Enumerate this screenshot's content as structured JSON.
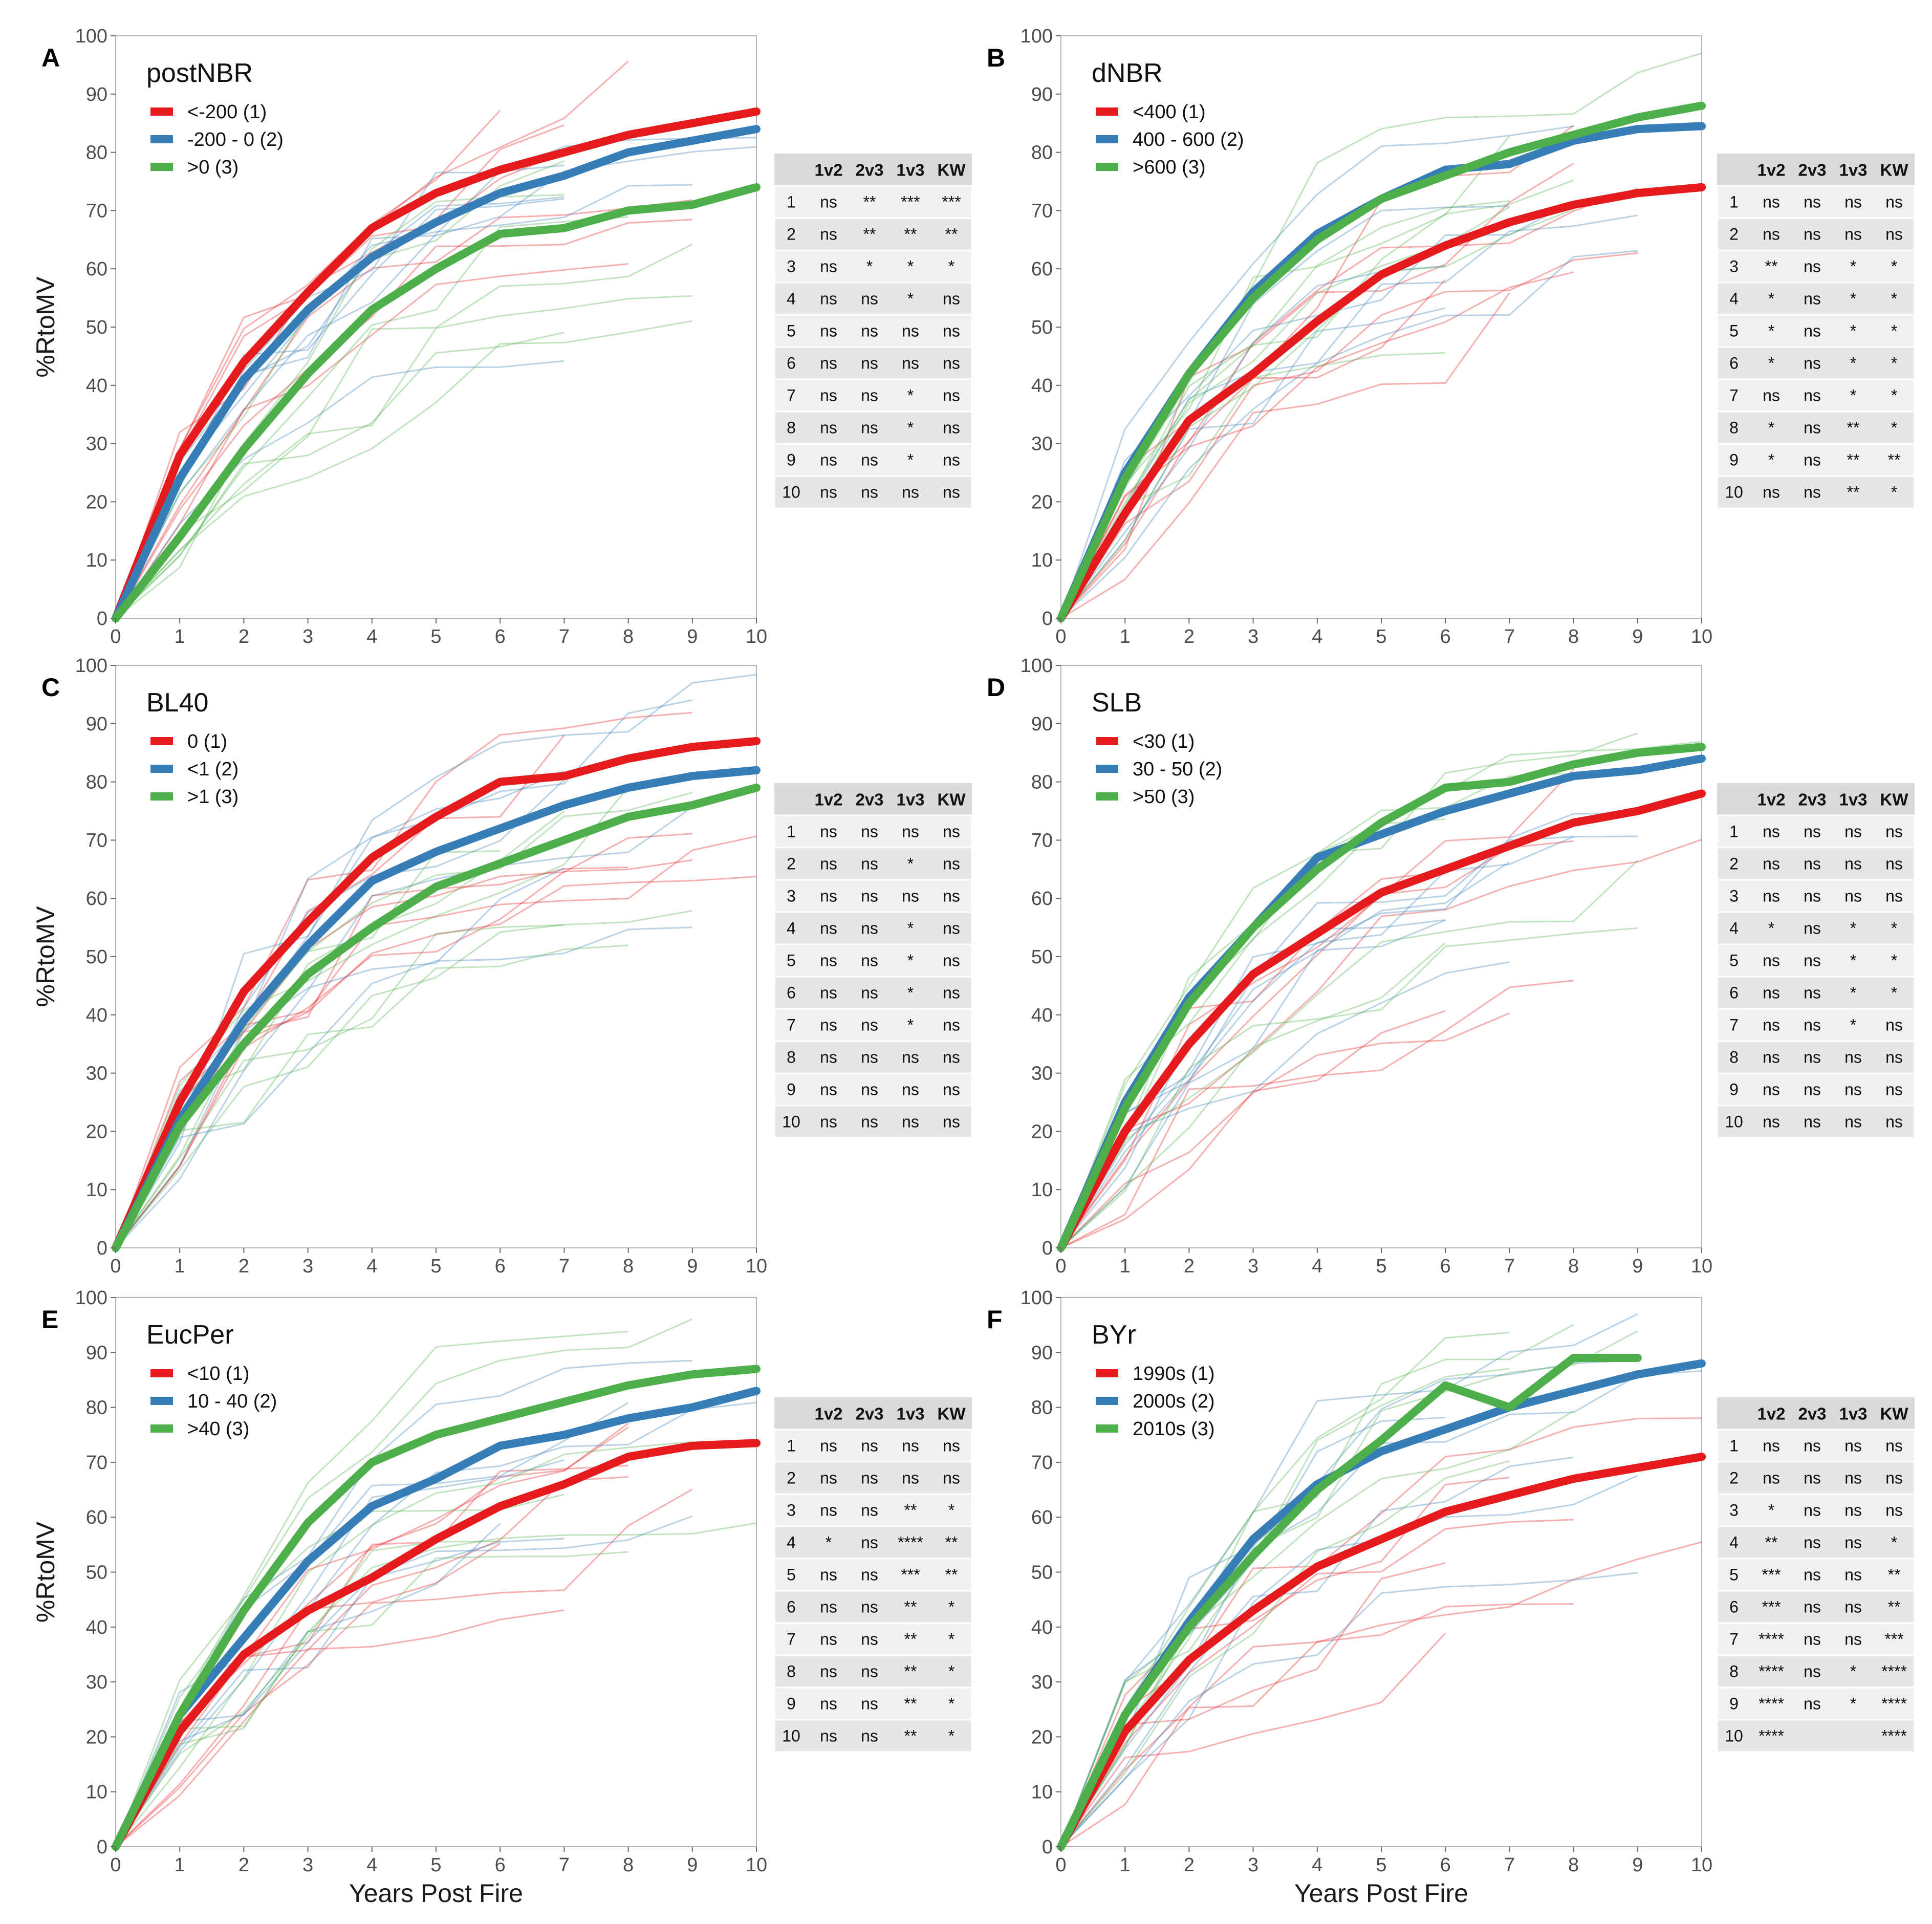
{
  "colors": {
    "group1": "#e41a1c",
    "group2": "#377eb8",
    "group3": "#4daf4a"
  },
  "common": {
    "x_ticks": [
      "0",
      "1",
      "2",
      "3",
      "4",
      "5",
      "6",
      "7",
      "8",
      "9",
      "10"
    ],
    "y_ticks": [
      "0",
      "10",
      "20",
      "30",
      "40",
      "50",
      "60",
      "70",
      "80",
      "90",
      "100"
    ],
    "ylabel": "%RtoMV",
    "xlabel": "Years Post Fire",
    "table_headers": [
      "1v2",
      "2v3",
      "1v3",
      "KW"
    ],
    "table_years": [
      "1",
      "2",
      "3",
      "4",
      "5",
      "6",
      "7",
      "8",
      "9",
      "10"
    ]
  },
  "chart_data": [
    {
      "type": "line",
      "panel": "A",
      "title": "postNBR",
      "xlabel": "",
      "ylabel": "%RtoMV",
      "xlim": [
        0,
        10
      ],
      "ylim": [
        0,
        100
      ],
      "legend": [
        "<-200 (1)",
        "-200 - 0 (2)",
        ">0 (3)"
      ],
      "series": [
        {
          "name": "<-200 (1)",
          "x": [
            0,
            1,
            2,
            3,
            4,
            5,
            6,
            7,
            8,
            9,
            10
          ],
          "values": [
            0,
            28,
            44,
            56,
            67,
            73,
            77,
            80,
            83,
            85,
            87
          ]
        },
        {
          "name": "-200 - 0 (2)",
          "x": [
            0,
            1,
            2,
            3,
            4,
            5,
            6,
            7,
            8,
            9,
            10
          ],
          "values": [
            0,
            24,
            41,
            53,
            62,
            68,
            73,
            76,
            80,
            82,
            84
          ]
        },
        {
          "name": ">0 (3)",
          "x": [
            0,
            1,
            2,
            3,
            4,
            5,
            6,
            7,
            8,
            9,
            10
          ],
          "values": [
            0,
            14,
            29,
            42,
            53,
            60,
            66,
            67,
            70,
            71,
            74
          ]
        }
      ],
      "table": [
        [
          "ns",
          "**",
          "***",
          "***"
        ],
        [
          "ns",
          "**",
          "**",
          "**"
        ],
        [
          "ns",
          "*",
          "*",
          "*"
        ],
        [
          "ns",
          "ns",
          "*",
          "ns"
        ],
        [
          "ns",
          "ns",
          "ns",
          "ns"
        ],
        [
          "ns",
          "ns",
          "ns",
          "ns"
        ],
        [
          "ns",
          "ns",
          "*",
          "ns"
        ],
        [
          "ns",
          "ns",
          "*",
          "ns"
        ],
        [
          "ns",
          "ns",
          "*",
          "ns"
        ],
        [
          "ns",
          "ns",
          "ns",
          "ns"
        ]
      ]
    },
    {
      "type": "line",
      "panel": "B",
      "title": "dNBR",
      "xlabel": "",
      "ylabel": "",
      "xlim": [
        0,
        10
      ],
      "ylim": [
        0,
        100
      ],
      "legend": [
        "<400 (1)",
        "400 - 600 (2)",
        ">600 (3)"
      ],
      "series": [
        {
          "name": "<400 (1)",
          "x": [
            0,
            1,
            2,
            3,
            4,
            5,
            6,
            7,
            8,
            9,
            10
          ],
          "values": [
            0,
            18,
            34,
            42,
            51,
            59,
            64,
            68,
            71,
            73,
            74
          ]
        },
        {
          "name": "400 - 600 (2)",
          "x": [
            0,
            1,
            2,
            3,
            4,
            5,
            6,
            7,
            8,
            9,
            10
          ],
          "values": [
            0,
            25,
            42,
            56,
            66,
            72,
            77,
            78,
            82,
            84,
            84.5
          ]
        },
        {
          "name": ">600 (3)",
          "x": [
            0,
            1,
            2,
            3,
            4,
            5,
            6,
            7,
            8,
            9,
            10
          ],
          "values": [
            0,
            24,
            42,
            55,
            65,
            72,
            76,
            80,
            83,
            86,
            88
          ]
        }
      ],
      "table": [
        [
          "ns",
          "ns",
          "ns",
          "ns"
        ],
        [
          "ns",
          "ns",
          "ns",
          "ns"
        ],
        [
          "**",
          "ns",
          "*",
          "*"
        ],
        [
          "*",
          "ns",
          "*",
          "*"
        ],
        [
          "*",
          "ns",
          "*",
          "*"
        ],
        [
          "*",
          "ns",
          "*",
          "*"
        ],
        [
          "ns",
          "ns",
          "*",
          "*"
        ],
        [
          "*",
          "ns",
          "**",
          "*"
        ],
        [
          "*",
          "ns",
          "**",
          "**"
        ],
        [
          "ns",
          "ns",
          "**",
          "*"
        ]
      ]
    },
    {
      "type": "line",
      "panel": "C",
      "title": "BL40",
      "xlabel": "",
      "ylabel": "%RtoMV",
      "xlim": [
        0,
        10
      ],
      "ylim": [
        0,
        100
      ],
      "legend": [
        "0 (1)",
        "<1 (2)",
        ">1 (3)"
      ],
      "series": [
        {
          "name": "0 (1)",
          "x": [
            0,
            1,
            2,
            3,
            4,
            5,
            6,
            7,
            8,
            9,
            10
          ],
          "values": [
            0,
            25,
            44,
            56,
            67,
            74,
            80,
            81,
            84,
            86,
            87
          ]
        },
        {
          "name": "<1 (2)",
          "x": [
            0,
            1,
            2,
            3,
            4,
            5,
            6,
            7,
            8,
            9,
            10
          ],
          "values": [
            0,
            22,
            39,
            52,
            63,
            68,
            72,
            76,
            79,
            81,
            82
          ]
        },
        {
          "name": ">1 (3)",
          "x": [
            0,
            1,
            2,
            3,
            4,
            5,
            6,
            7,
            8,
            9,
            10
          ],
          "values": [
            0,
            21,
            35,
            47,
            55,
            62,
            66,
            70,
            74,
            76,
            79
          ]
        }
      ],
      "table": [
        [
          "ns",
          "ns",
          "ns",
          "ns"
        ],
        [
          "ns",
          "ns",
          "*",
          "ns"
        ],
        [
          "ns",
          "ns",
          "ns",
          "ns"
        ],
        [
          "ns",
          "ns",
          "*",
          "ns"
        ],
        [
          "ns",
          "ns",
          "*",
          "ns"
        ],
        [
          "ns",
          "ns",
          "*",
          "ns"
        ],
        [
          "ns",
          "ns",
          "*",
          "ns"
        ],
        [
          "ns",
          "ns",
          "ns",
          "ns"
        ],
        [
          "ns",
          "ns",
          "ns",
          "ns"
        ],
        [
          "ns",
          "ns",
          "ns",
          "ns"
        ]
      ]
    },
    {
      "type": "line",
      "panel": "D",
      "title": "SLB",
      "xlabel": "",
      "ylabel": "",
      "xlim": [
        0,
        10
      ],
      "ylim": [
        0,
        100
      ],
      "legend": [
        "<30 (1)",
        "30 - 50 (2)",
        ">50 (3)"
      ],
      "series": [
        {
          "name": "<30 (1)",
          "x": [
            0,
            1,
            2,
            3,
            4,
            5,
            6,
            7,
            8,
            9,
            10
          ],
          "values": [
            0,
            20,
            35,
            47,
            54,
            61,
            65,
            69,
            73,
            75,
            78
          ]
        },
        {
          "name": "30 - 50 (2)",
          "x": [
            0,
            1,
            2,
            3,
            4,
            5,
            6,
            7,
            8,
            9,
            10
          ],
          "values": [
            0,
            25,
            43,
            55,
            67,
            71,
            75,
            78,
            81,
            82,
            84
          ]
        },
        {
          "name": ">50 (3)",
          "x": [
            0,
            1,
            2,
            3,
            4,
            5,
            6,
            7,
            8,
            9,
            10
          ],
          "values": [
            0,
            24,
            42,
            55,
            65,
            73,
            79,
            80,
            83,
            85,
            86
          ]
        }
      ],
      "table": [
        [
          "ns",
          "ns",
          "ns",
          "ns"
        ],
        [
          "ns",
          "ns",
          "ns",
          "ns"
        ],
        [
          "ns",
          "ns",
          "ns",
          "ns"
        ],
        [
          "*",
          "ns",
          "*",
          "*"
        ],
        [
          "ns",
          "ns",
          "*",
          "*"
        ],
        [
          "ns",
          "ns",
          "*",
          "*"
        ],
        [
          "ns",
          "ns",
          "*",
          "ns"
        ],
        [
          "ns",
          "ns",
          "ns",
          "ns"
        ],
        [
          "ns",
          "ns",
          "ns",
          "ns"
        ],
        [
          "ns",
          "ns",
          "ns",
          "ns"
        ]
      ]
    },
    {
      "type": "line",
      "panel": "E",
      "title": "EucPer",
      "xlabel": "Years Post Fire",
      "ylabel": "%RtoMV",
      "xlim": [
        0,
        10
      ],
      "ylim": [
        0,
        100
      ],
      "legend": [
        "<10 (1)",
        "10 - 40 (2)",
        ">40 (3)"
      ],
      "series": [
        {
          "name": "<10 (1)",
          "x": [
            0,
            1,
            2,
            3,
            4,
            5,
            6,
            7,
            8,
            9,
            10
          ],
          "values": [
            0,
            21,
            35,
            43,
            49,
            56,
            62,
            66,
            71,
            73,
            73.5
          ]
        },
        {
          "name": "10 - 40 (2)",
          "x": [
            0,
            1,
            2,
            3,
            4,
            5,
            6,
            7,
            8,
            9,
            10
          ],
          "values": [
            0,
            24,
            38,
            52,
            62,
            67,
            73,
            75,
            78,
            80,
            83
          ]
        },
        {
          "name": ">40 (3)",
          "x": [
            0,
            1,
            2,
            3,
            4,
            5,
            6,
            7,
            8,
            9,
            10
          ],
          "values": [
            0,
            24,
            43,
            59,
            70,
            75,
            78,
            81,
            84,
            86,
            87
          ]
        }
      ],
      "table": [
        [
          "ns",
          "ns",
          "ns",
          "ns"
        ],
        [
          "ns",
          "ns",
          "ns",
          "ns"
        ],
        [
          "ns",
          "ns",
          "**",
          "*"
        ],
        [
          "*",
          "ns",
          "****",
          "**"
        ],
        [
          "ns",
          "ns",
          "***",
          "**"
        ],
        [
          "ns",
          "ns",
          "**",
          "*"
        ],
        [
          "ns",
          "ns",
          "**",
          "*"
        ],
        [
          "ns",
          "ns",
          "**",
          "*"
        ],
        [
          "ns",
          "ns",
          "**",
          "*"
        ],
        [
          "ns",
          "ns",
          "**",
          "*"
        ]
      ]
    },
    {
      "type": "line",
      "panel": "F",
      "title": "BYr",
      "xlabel": "Years Post Fire",
      "ylabel": "",
      "xlim": [
        0,
        10
      ],
      "ylim": [
        0,
        100
      ],
      "legend": [
        "1990s (1)",
        "2000s (2)",
        "2010s (3)"
      ],
      "series": [
        {
          "name": "1990s (1)",
          "x": [
            0,
            1,
            2,
            3,
            4,
            5,
            6,
            7,
            8,
            9,
            10
          ],
          "values": [
            0,
            21,
            34,
            43,
            51,
            56,
            61,
            64,
            67,
            69,
            71
          ]
        },
        {
          "name": "2000s (2)",
          "x": [
            0,
            1,
            2,
            3,
            4,
            5,
            6,
            7,
            8,
            9,
            10
          ],
          "values": [
            0,
            24,
            41,
            56,
            66,
            72,
            76,
            80,
            83,
            86,
            88
          ]
        },
        {
          "name": "2010s (3)",
          "x": [
            0,
            1,
            2,
            3,
            4,
            5,
            6,
            7,
            8,
            9
          ],
          "values": [
            0,
            24,
            40,
            53,
            65,
            74,
            84,
            80,
            89,
            89
          ]
        }
      ],
      "table": [
        [
          "ns",
          "ns",
          "ns",
          "ns"
        ],
        [
          "ns",
          "ns",
          "ns",
          "ns"
        ],
        [
          "*",
          "ns",
          "ns",
          "ns"
        ],
        [
          "**",
          "ns",
          "ns",
          "*"
        ],
        [
          "***",
          "ns",
          "ns",
          "**"
        ],
        [
          "***",
          "ns",
          "ns",
          "**"
        ],
        [
          "****",
          "ns",
          "ns",
          "***"
        ],
        [
          "****",
          "ns",
          "*",
          "****"
        ],
        [
          "****",
          "ns",
          "*",
          "****"
        ],
        [
          "****",
          "",
          "",
          "****"
        ]
      ]
    }
  ]
}
